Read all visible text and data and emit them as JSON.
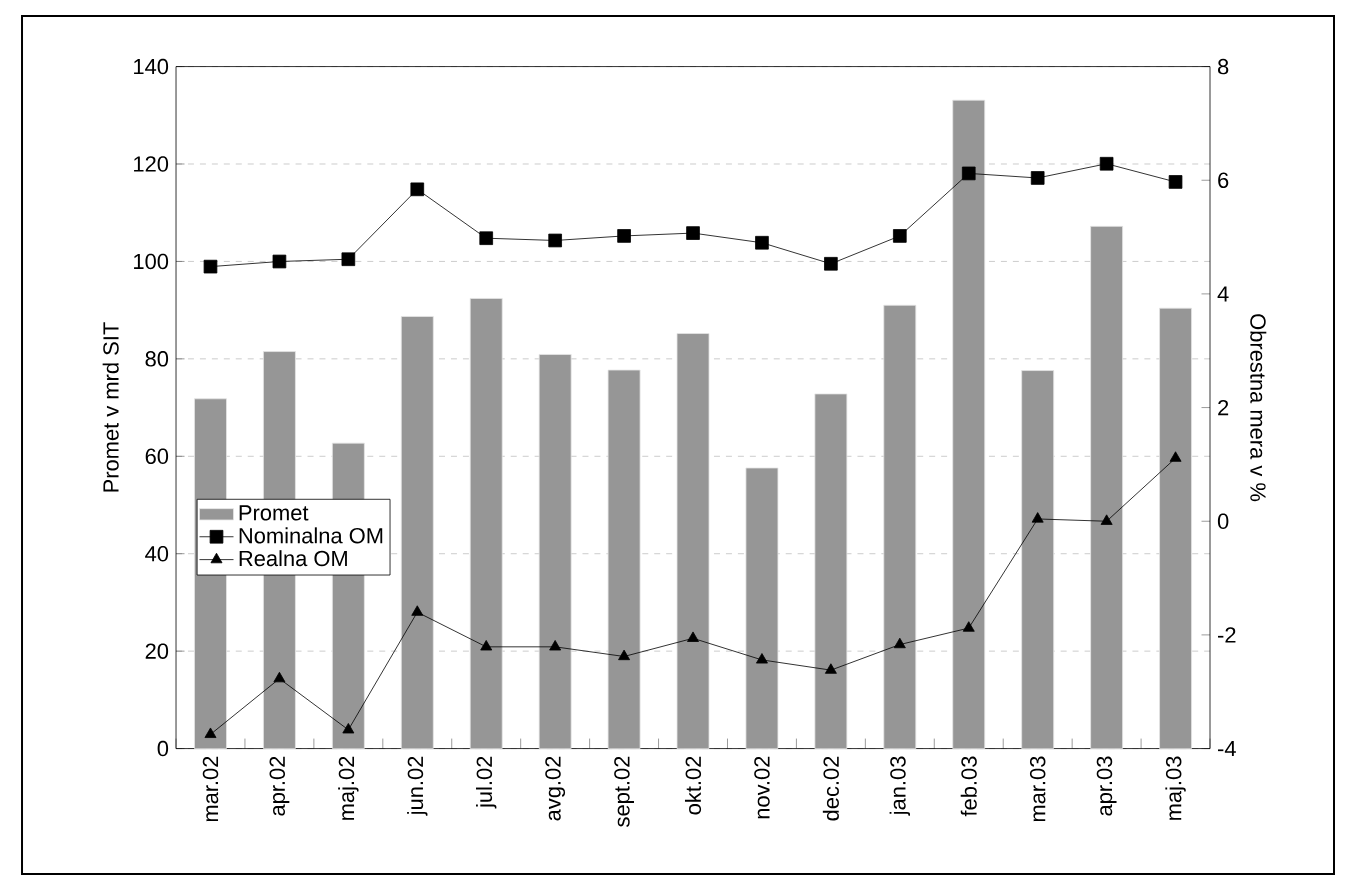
{
  "chart_data": {
    "type": "bar",
    "categories": [
      "mar.02",
      "apr.02",
      "maj.02",
      "jun.02",
      "jul.02",
      "avg.02",
      "sept.02",
      "okt.02",
      "nov.02",
      "dec.02",
      "jan.03",
      "feb.03",
      "mar.03",
      "apr.03",
      "maj.03"
    ],
    "series": [
      {
        "name": "Promet",
        "color": "#969696",
        "values": [
          71.8,
          81.5,
          62.7,
          88.7,
          92.4,
          80.9,
          77.7,
          85.2,
          57.6,
          72.8,
          91.0,
          133.1,
          77.6,
          107.2,
          90.4
        ]
      },
      {
        "name": "Nominalna OM",
        "type": "line",
        "axis": "y2",
        "marker": "square",
        "color": "#000000",
        "values": [
          4.48,
          4.57,
          4.61,
          5.84,
          4.98,
          4.94,
          5.02,
          5.07,
          4.9,
          4.53,
          5.02,
          6.12,
          6.04,
          6.29,
          5.97
        ]
      },
      {
        "name": "Realna OM",
        "type": "line",
        "axis": "y2",
        "marker": "triangle",
        "color": "#000000",
        "values": [
          -3.75,
          -2.77,
          -3.67,
          -1.6,
          -2.21,
          -2.21,
          -2.38,
          -2.06,
          -2.44,
          -2.62,
          -2.17,
          -1.88,
          0.04,
          0.0,
          1.11
        ]
      }
    ],
    "ylabel": "Promet v mrd SIT",
    "y2label": "Obrestna mera v %",
    "ylim": [
      0,
      140
    ],
    "yticks": [
      0,
      20,
      40,
      60,
      80,
      100,
      120,
      140
    ],
    "y2lim": [
      -4,
      8
    ],
    "y2ticks": [
      -4,
      -2,
      0,
      2,
      4,
      6,
      8
    ],
    "grid": "y",
    "legend": "left"
  }
}
